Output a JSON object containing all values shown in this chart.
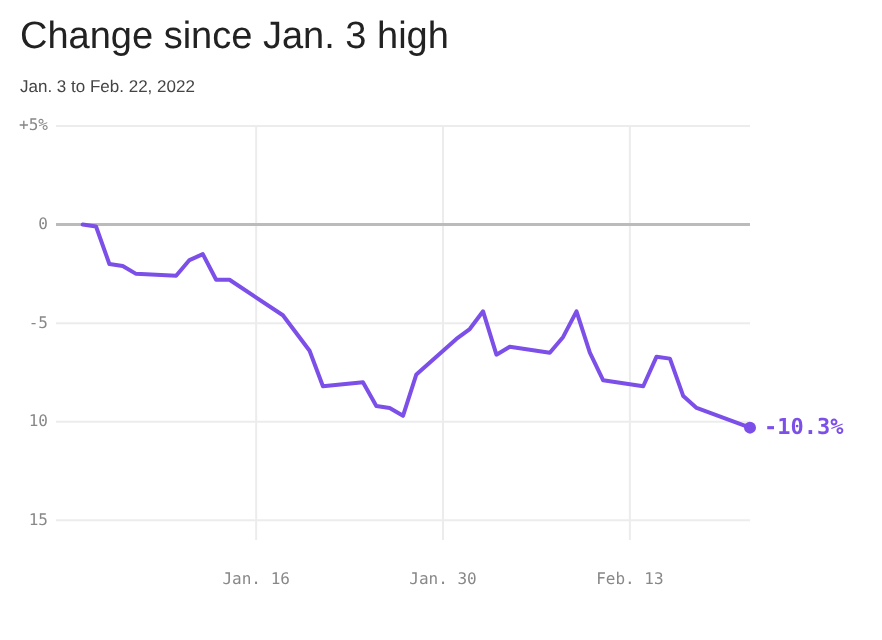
{
  "chart_data": {
    "type": "line",
    "title": "Change since Jan. 3 high",
    "subtitle": "Jan. 3 to Feb. 22, 2022",
    "x": [
      "2022-01-03",
      "2022-01-04",
      "2022-01-05",
      "2022-01-06",
      "2022-01-07",
      "2022-01-10",
      "2022-01-11",
      "2022-01-12",
      "2022-01-13",
      "2022-01-14",
      "2022-01-18",
      "2022-01-19",
      "2022-01-20",
      "2022-01-21",
      "2022-01-24",
      "2022-01-25",
      "2022-01-26",
      "2022-01-27",
      "2022-01-28",
      "2022-01-31",
      "2022-02-01",
      "2022-02-02",
      "2022-02-03",
      "2022-02-04",
      "2022-02-07",
      "2022-02-08",
      "2022-02-09",
      "2022-02-10",
      "2022-02-11",
      "2022-02-14",
      "2022-02-15",
      "2022-02-16",
      "2022-02-17",
      "2022-02-18",
      "2022-02-22"
    ],
    "series": [
      {
        "color": "#7b4fe8",
        "values": [
          0,
          -0.1,
          -2.0,
          -2.1,
          -2.5,
          -2.6,
          -1.8,
          -1.5,
          -2.8,
          -2.8,
          -4.6,
          -5.5,
          -6.4,
          -8.2,
          -8.0,
          -9.2,
          -9.3,
          -9.7,
          -7.6,
          -5.8,
          -5.3,
          -4.4,
          -6.6,
          -6.2,
          -6.5,
          -5.7,
          -4.4,
          -6.5,
          -7.9,
          -8.2,
          -6.7,
          -6.8,
          -8.7,
          -9.3,
          -10.3
        ]
      }
    ],
    "xlim": [
      "2022-01-01",
      "2022-02-22"
    ],
    "xticks": [
      {
        "value": "2022-01-16",
        "label": "Jan. 16"
      },
      {
        "value": "2022-01-30",
        "label": "Jan. 30"
      },
      {
        "value": "2022-02-13",
        "label": "Feb. 13"
      }
    ],
    "ylim": [
      -16,
      5
    ],
    "yticks": [
      {
        "value": 5,
        "label": "+5%"
      },
      0,
      {
        "value": -5,
        "label": "-5"
      },
      {
        "value": -10,
        "label": "10"
      },
      {
        "value": -15,
        "label": "15"
      }
    ],
    "grid": true,
    "line_style": "solid",
    "marker": "none",
    "ref_lines": [
      {
        "axis": "y",
        "value": 0,
        "color": "#bbbbbb"
      }
    ],
    "annotations": [
      {
        "text": "-10.3%",
        "x": "2022-02-22",
        "y": -10.3
      }
    ]
  }
}
